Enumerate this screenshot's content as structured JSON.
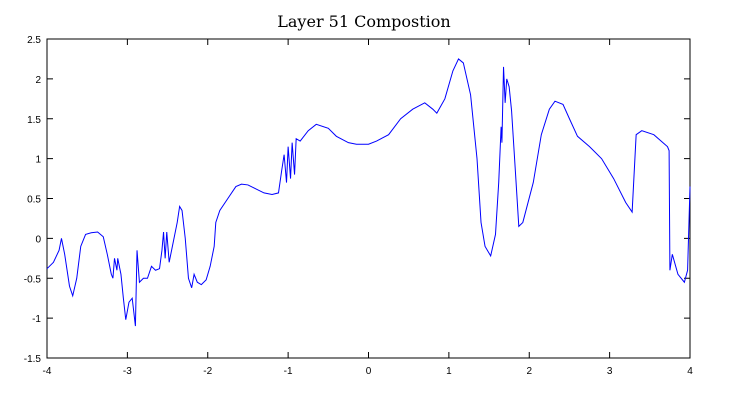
{
  "chart_data": {
    "type": "line",
    "title": "Layer 51 Compostion",
    "x": [
      -4.0,
      -3.92,
      -3.85,
      -3.82,
      -3.78,
      -3.72,
      -3.68,
      -3.63,
      -3.58,
      -3.52,
      -3.45,
      -3.37,
      -3.3,
      -3.25,
      -3.2,
      -3.18,
      -3.16,
      -3.13,
      -3.12,
      -3.08,
      -3.05,
      -3.02,
      -2.98,
      -2.94,
      -2.9,
      -2.88,
      -2.85,
      -2.8,
      -2.75,
      -2.7,
      -2.65,
      -2.6,
      -2.57,
      -2.55,
      -2.53,
      -2.51,
      -2.48,
      -2.44,
      -2.38,
      -2.35,
      -2.32,
      -2.28,
      -2.24,
      -2.2,
      -2.17,
      -2.13,
      -2.08,
      -2.02,
      -1.97,
      -1.92,
      -1.9,
      -1.85,
      -1.75,
      -1.65,
      -1.58,
      -1.5,
      -1.4,
      -1.3,
      -1.2,
      -1.12,
      -1.08,
      -1.05,
      -1.02,
      -1.0,
      -0.97,
      -0.95,
      -0.92,
      -0.9,
      -0.85,
      -0.75,
      -0.65,
      -0.5,
      -0.4,
      -0.25,
      -0.15,
      0.0,
      0.1,
      0.25,
      0.4,
      0.55,
      0.7,
      0.8,
      0.85,
      0.95,
      1.05,
      1.12,
      1.18,
      1.27,
      1.35,
      1.4,
      1.45,
      1.52,
      1.58,
      1.62,
      1.65,
      1.66,
      1.68,
      1.7,
      1.72,
      1.75,
      1.78,
      1.83,
      1.87,
      1.92,
      2.05,
      2.15,
      2.25,
      2.32,
      2.42,
      2.5,
      2.6,
      2.75,
      2.9,
      3.05,
      3.2,
      3.28,
      3.33,
      3.4,
      3.55,
      3.72,
      3.74,
      3.75,
      3.78,
      3.85,
      3.93,
      3.97,
      4.0
    ],
    "series": [
      {
        "color": "#0000ff",
        "values": [
          -0.38,
          -0.3,
          -0.15,
          0.0,
          -0.2,
          -0.6,
          -0.72,
          -0.5,
          -0.1,
          0.05,
          0.07,
          0.08,
          0.02,
          -0.2,
          -0.45,
          -0.5,
          -0.25,
          -0.4,
          -0.25,
          -0.45,
          -0.75,
          -1.02,
          -0.8,
          -0.75,
          -1.1,
          -0.15,
          -0.55,
          -0.5,
          -0.5,
          -0.35,
          -0.4,
          -0.38,
          -0.15,
          0.08,
          -0.25,
          0.08,
          -0.3,
          -0.1,
          0.2,
          0.4,
          0.35,
          0.0,
          -0.5,
          -0.62,
          -0.45,
          -0.55,
          -0.58,
          -0.52,
          -0.35,
          -0.1,
          0.2,
          0.35,
          0.5,
          0.65,
          0.68,
          0.67,
          0.62,
          0.57,
          0.55,
          0.57,
          0.85,
          1.05,
          0.7,
          1.15,
          0.75,
          1.2,
          0.8,
          1.25,
          1.22,
          1.35,
          1.43,
          1.38,
          1.28,
          1.2,
          1.18,
          1.18,
          1.22,
          1.3,
          1.5,
          1.62,
          1.7,
          1.62,
          1.57,
          1.75,
          2.1,
          2.25,
          2.2,
          1.8,
          1.0,
          0.2,
          -0.1,
          -0.22,
          0.05,
          0.7,
          1.4,
          1.2,
          2.15,
          1.7,
          2.0,
          1.9,
          1.6,
          0.8,
          0.15,
          0.2,
          0.7,
          1.3,
          1.62,
          1.72,
          1.68,
          1.5,
          1.28,
          1.15,
          1.0,
          0.75,
          0.45,
          0.33,
          1.3,
          1.35,
          1.3,
          1.15,
          1.1,
          -0.4,
          -0.2,
          -0.45,
          -0.55,
          -0.4,
          0.65
        ]
      }
    ],
    "xlim": [
      -4,
      4
    ],
    "ylim": [
      -1.5,
      2.5
    ],
    "xticks": [
      -4,
      -3,
      -2,
      -1,
      0,
      1,
      2,
      3,
      4
    ],
    "yticks": [
      -1.5,
      -1,
      -0.5,
      0,
      0.5,
      1,
      1.5,
      2,
      2.5
    ]
  }
}
